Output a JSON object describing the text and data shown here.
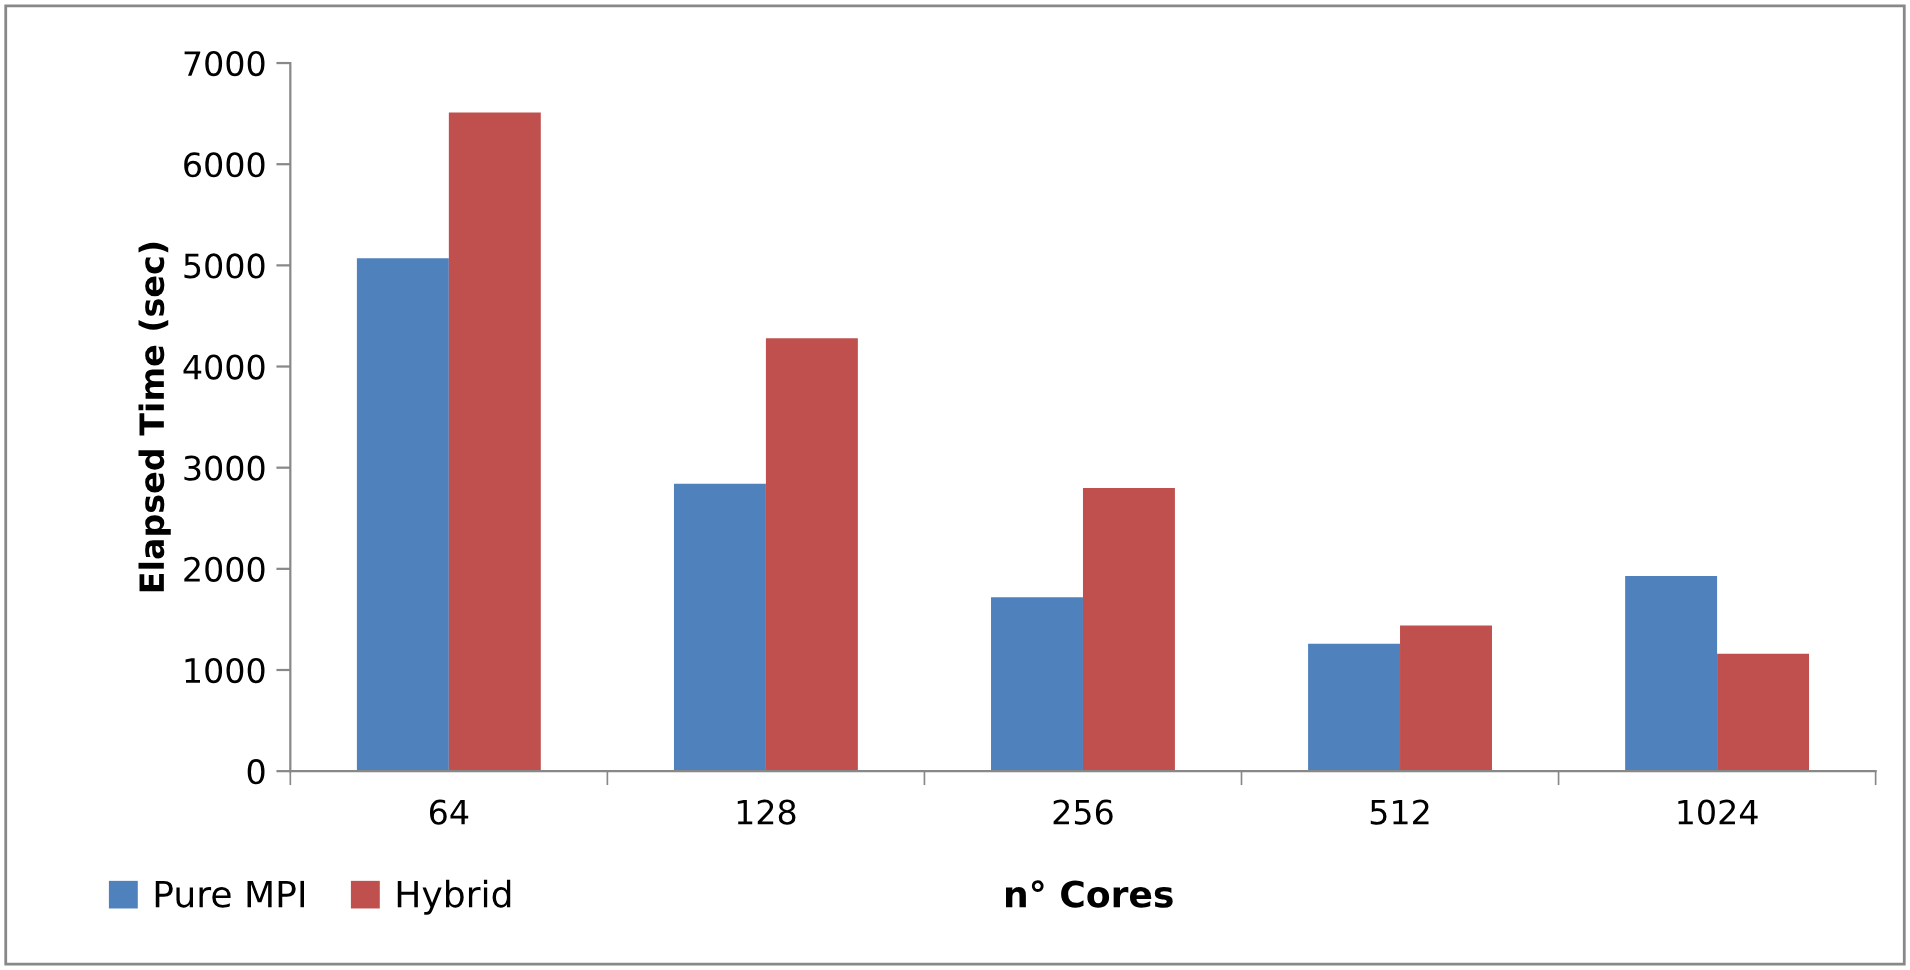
{
  "chart_data": {
    "type": "bar",
    "xlabel": "n° Cores",
    "ylabel": "Elapsed Time (sec)",
    "categories": [
      "64",
      "128",
      "256",
      "512",
      "1024"
    ],
    "series": [
      {
        "name": "Pure MPI",
        "color": "#4f81bd",
        "values": [
          5070,
          2840,
          1720,
          1260,
          1930
        ]
      },
      {
        "name": "Hybrid",
        "color": "#c0504d",
        "values": [
          6510,
          4280,
          2800,
          1440,
          1160
        ]
      }
    ],
    "ylim": [
      0,
      7000
    ],
    "yticks": [
      0,
      1000,
      2000,
      3000,
      4000,
      5000,
      6000,
      7000
    ],
    "grid": false,
    "legend": "bottom left"
  }
}
